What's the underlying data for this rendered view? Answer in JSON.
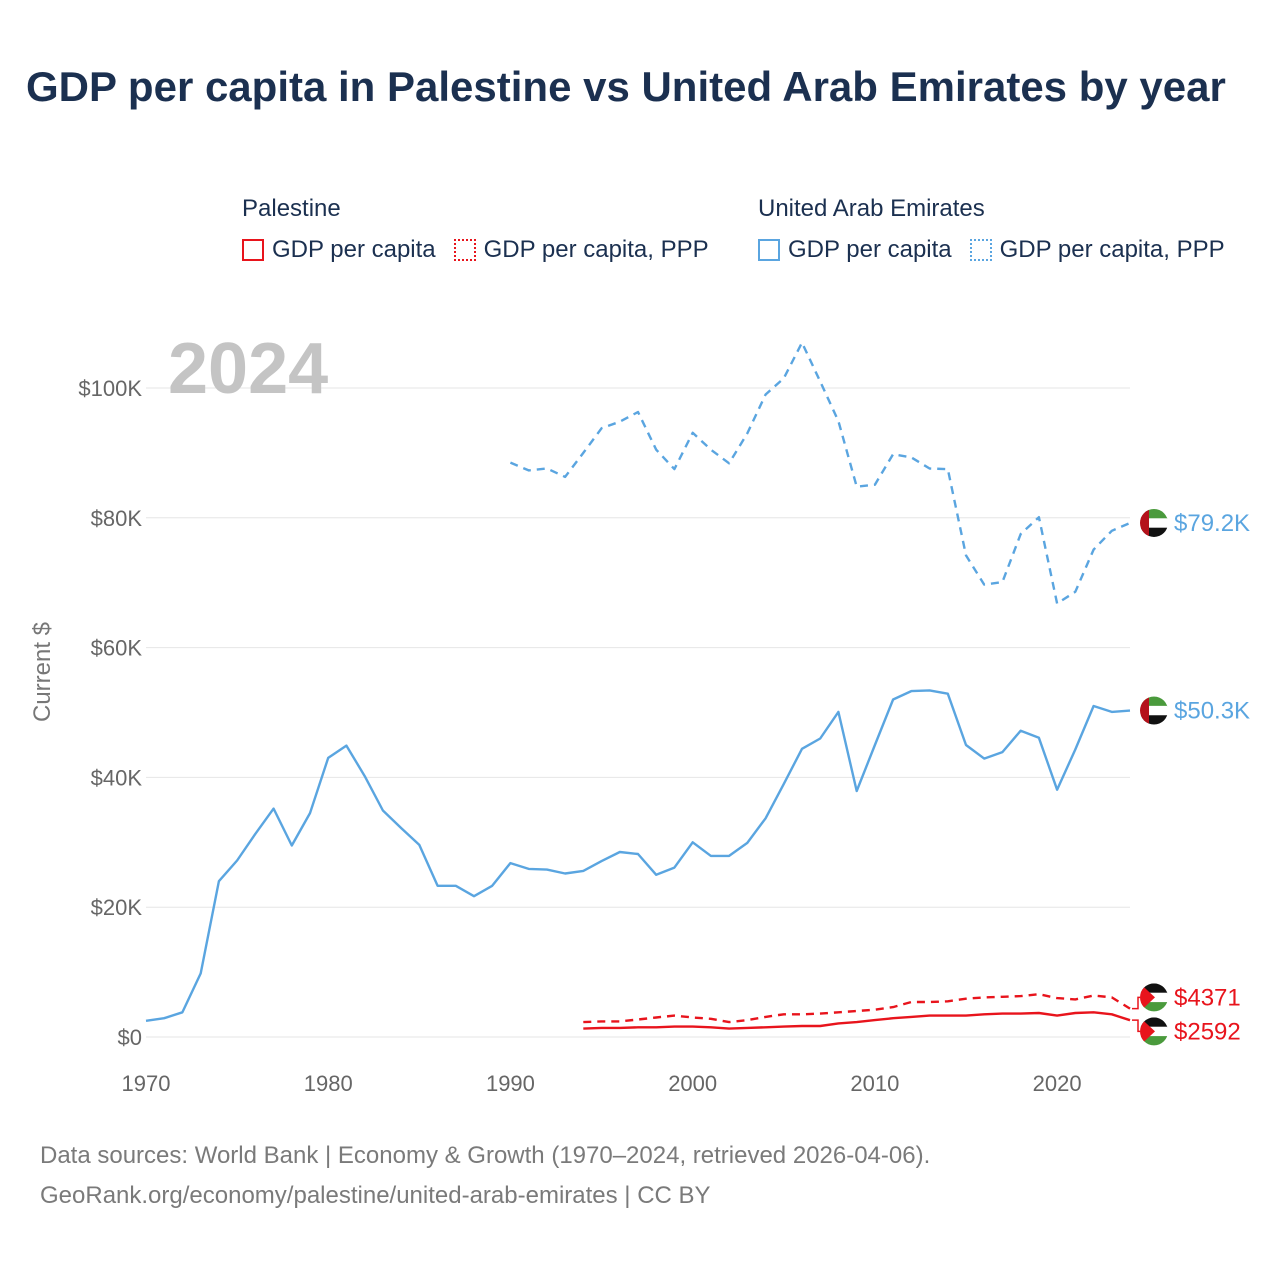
{
  "title": "GDP per capita in Palestine vs United Arab Emirates by year",
  "legend": {
    "groups": [
      {
        "country": "Palestine",
        "items": [
          {
            "label": "GDP per capita",
            "style": "solid",
            "color": "#e8141c"
          },
          {
            "label": "GDP per capita, PPP",
            "style": "dotted",
            "color": "#e8141c"
          }
        ]
      },
      {
        "country": "United Arab Emirates",
        "items": [
          {
            "label": "GDP per capita",
            "style": "solid",
            "color": "#5aa5e0"
          },
          {
            "label": "GDP per capita, PPP",
            "style": "dotted",
            "color": "#5aa5e0"
          }
        ]
      }
    ]
  },
  "year_label": "2024",
  "footer": {
    "line1": "Data sources: World Bank | Economy & Growth (1970–2024, retrieved 2026-04-06).",
    "line2": "GeoRank.org/economy/palestine/united-arab-emirates | CC BY"
  },
  "colors": {
    "palestine": "#e8141c",
    "uae": "#5aa5e0",
    "grid": "#e6e6e6",
    "axis_text": "#666666",
    "year_label": "#c4c4c4"
  },
  "chart_data": {
    "type": "line",
    "title": "GDP per capita in Palestine vs United Arab Emirates by year",
    "xlabel": "",
    "ylabel": "Current $",
    "xlim": [
      1970,
      2024
    ],
    "ylim": [
      0,
      110000
    ],
    "x_ticks": [
      1970,
      1980,
      1990,
      2000,
      2010,
      2020
    ],
    "y_ticks": [
      0,
      20000,
      40000,
      60000,
      80000,
      100000
    ],
    "y_tick_labels": [
      "$0",
      "$20K",
      "$40K",
      "$60K",
      "$80K",
      "$100K"
    ],
    "grid": true,
    "series": [
      {
        "name": "United Arab Emirates GDP per capita",
        "country": "uae",
        "dash": "solid",
        "end_label": "$50.3K",
        "x": [
          1970,
          1971,
          1972,
          1973,
          1974,
          1975,
          1976,
          1977,
          1978,
          1979,
          1980,
          1981,
          1982,
          1983,
          1984,
          1985,
          1986,
          1987,
          1988,
          1989,
          1990,
          1991,
          1992,
          1993,
          1994,
          1995,
          1996,
          1997,
          1998,
          1999,
          2000,
          2001,
          2002,
          2003,
          2004,
          2005,
          2006,
          2007,
          2008,
          2009,
          2010,
          2011,
          2012,
          2013,
          2014,
          2015,
          2016,
          2017,
          2018,
          2019,
          2020,
          2021,
          2022,
          2023,
          2024
        ],
        "values": [
          2500,
          2900,
          3800,
          9800,
          24000,
          27200,
          31300,
          35200,
          29500,
          34500,
          43000,
          44900,
          40200,
          34900,
          32200,
          29600,
          23300,
          23300,
          21700,
          23300,
          26800,
          25900,
          25800,
          25200,
          25600,
          27100,
          28500,
          28200,
          25000,
          26100,
          30000,
          27900,
          27900,
          29900,
          33700,
          39000,
          44400,
          46000,
          50100,
          37900,
          45000,
          52000,
          53300,
          53400,
          52900,
          45000,
          42900,
          43900,
          47200,
          46100,
          38100,
          44300,
          51000,
          50100,
          50300
        ]
      },
      {
        "name": "United Arab Emirates GDP per capita, PPP",
        "country": "uae",
        "dash": "dashed",
        "end_label": "$79.2K",
        "x": [
          1990,
          1991,
          1992,
          1993,
          1994,
          1995,
          1996,
          1997,
          1998,
          1999,
          2000,
          2001,
          2002,
          2003,
          2004,
          2005,
          2006,
          2007,
          2008,
          2009,
          2010,
          2011,
          2012,
          2013,
          2014,
          2015,
          2016,
          2017,
          2018,
          2019,
          2020,
          2021,
          2022,
          2023,
          2024
        ],
        "values": [
          88500,
          87300,
          87600,
          86300,
          90000,
          93800,
          94800,
          96300,
          90500,
          87500,
          93100,
          90500,
          88400,
          93000,
          99000,
          101500,
          107000,
          101000,
          94900,
          84800,
          85100,
          89800,
          89300,
          87600,
          87500,
          74200,
          69700,
          70100,
          77500,
          80100,
          66800,
          68600,
          75100,
          78000,
          79200
        ]
      },
      {
        "name": "Palestine GDP per capita",
        "country": "palestine",
        "dash": "solid",
        "end_label": "$2592",
        "x": [
          1994,
          1995,
          1996,
          1997,
          1998,
          1999,
          2000,
          2001,
          2002,
          2003,
          2004,
          2005,
          2006,
          2007,
          2008,
          2009,
          2010,
          2011,
          2012,
          2013,
          2014,
          2015,
          2016,
          2017,
          2018,
          2019,
          2020,
          2021,
          2022,
          2023,
          2024
        ],
        "values": [
          1300,
          1400,
          1400,
          1500,
          1500,
          1600,
          1600,
          1500,
          1300,
          1400,
          1500,
          1600,
          1700,
          1700,
          2100,
          2300,
          2600,
          2900,
          3100,
          3300,
          3300,
          3300,
          3500,
          3600,
          3600,
          3700,
          3300,
          3700,
          3800,
          3500,
          2592
        ]
      },
      {
        "name": "Palestine GDP per capita, PPP",
        "country": "palestine",
        "dash": "dashed",
        "end_label": "$4371",
        "x": [
          1994,
          1995,
          1996,
          1997,
          1998,
          1999,
          2000,
          2001,
          2002,
          2003,
          2004,
          2005,
          2006,
          2007,
          2008,
          2009,
          2010,
          2011,
          2012,
          2013,
          2014,
          2015,
          2016,
          2017,
          2018,
          2019,
          2020,
          2021,
          2022,
          2023,
          2024
        ],
        "values": [
          2300,
          2400,
          2400,
          2700,
          3000,
          3300,
          3000,
          2800,
          2300,
          2600,
          3100,
          3500,
          3500,
          3600,
          3800,
          4000,
          4200,
          4600,
          5400,
          5400,
          5500,
          5900,
          6100,
          6200,
          6300,
          6600,
          6000,
          5800,
          6400,
          6100,
          4371
        ]
      }
    ]
  }
}
